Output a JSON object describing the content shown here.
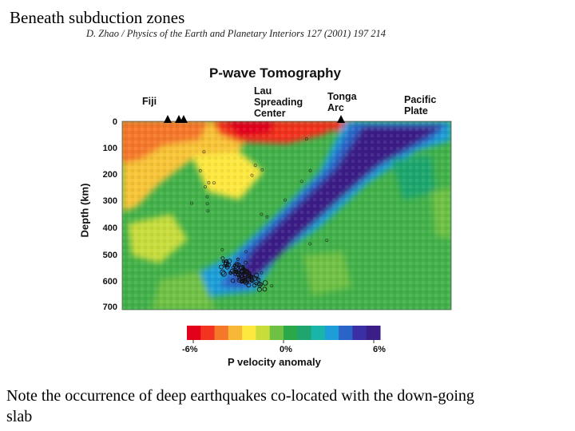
{
  "slide": {
    "title": "Beneath subduction zones",
    "citation": "D. Zhao / Physics of the Earth and Planetary Interiors 127 (2001) 197 214",
    "caption": "Note the occurrence of deep earthquakes co-located with the down-going slab"
  },
  "figure": {
    "title": "P-wave Tomography",
    "places": {
      "fiji": "Fiji",
      "lau": "Lau\nSpreading\nCenter",
      "tonga": "Tonga\nArc",
      "pacific": "Pacific\nPlate"
    },
    "y_axis": {
      "label": "Depth (km)",
      "ticks": [
        "0",
        "100",
        "200",
        "300",
        "400",
        "500",
        "600",
        "700"
      ],
      "range_km": [
        0,
        700
      ]
    },
    "colorbar": {
      "title": "P velocity anomaly",
      "min_label": "-6%",
      "mid_label": "0%",
      "max_label": "6%",
      "colors": [
        "#e2001a",
        "#f2331f",
        "#f5772a",
        "#f8b737",
        "#fde83f",
        "#c8dd3c",
        "#6fc144",
        "#2aa84a",
        "#1ea66e",
        "#1ab4a8",
        "#1e9ed8",
        "#2b64c8",
        "#3a2fa5",
        "#3b1f86"
      ]
    },
    "volcano_markers": 4
  },
  "colors": {
    "red": "#e2001a",
    "yellow": "#fde83f",
    "green": "#42b14a",
    "blue": "#1e9ed8",
    "purple": "#3b1f86"
  }
}
